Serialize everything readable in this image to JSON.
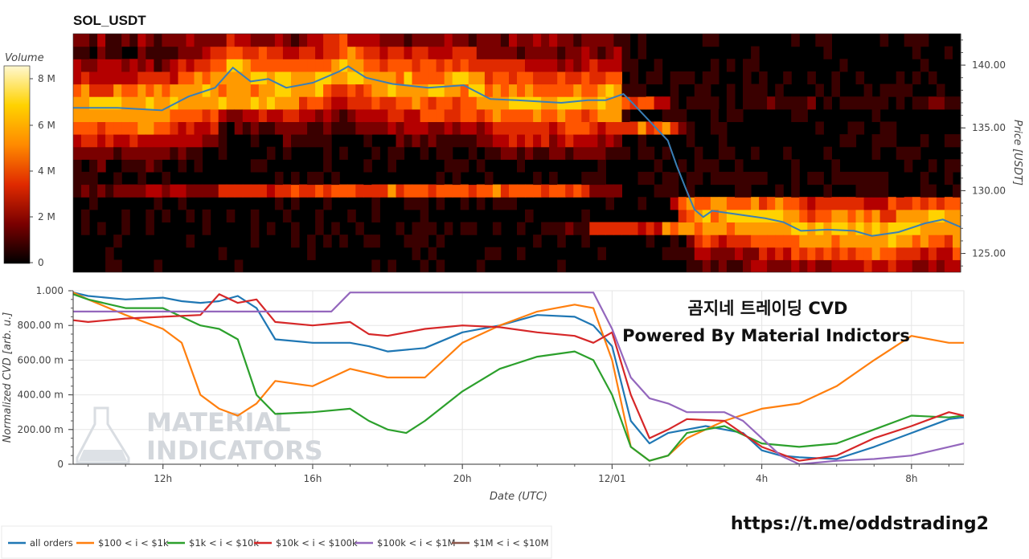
{
  "header": {
    "title": "SOL_USDT"
  },
  "heatmap": {
    "colorbar_title": "Volume",
    "colorbar_ticks": [
      "8 M",
      "6 M",
      "4 M",
      "2 M",
      "0"
    ],
    "price_axis_title": "Price [USDT]",
    "price_ticks": [
      "140.00",
      "135.00",
      "130.00",
      "125.00"
    ],
    "colors": [
      "#000000",
      "#3a0000",
      "#7a0000",
      "#b40000",
      "#e02a00",
      "#ff5500",
      "#ff9a00",
      "#ffd200",
      "#fff8a0"
    ]
  },
  "cvd": {
    "y_axis_title": "Normalized CVD [arb. u.]",
    "y_ticks": [
      "1.000",
      "800.00 m",
      "600.00 m",
      "400.00 m",
      "200.00 m",
      "0"
    ],
    "x_axis_title": "Date (UTC)",
    "x_ticks": [
      "12h",
      "16h",
      "20h",
      "12/01",
      "4h",
      "8h"
    ]
  },
  "overlay": {
    "line1": "곰지네 트레이딩 CVD",
    "line2": "Powered By Material Indictors",
    "watermark_line1": "MATERIAL",
    "watermark_line2": "INDICATORS",
    "url": "https://t.me/oddstrading2"
  },
  "legend": {
    "items": [
      {
        "label": "all orders",
        "color": "#1f77b4"
      },
      {
        "label": "$100 < i < $1k",
        "color": "#ff7f0e"
      },
      {
        "label": "$1k < i < $10k",
        "color": "#2ca02c"
      },
      {
        "label": "$10k < i < $100k",
        "color": "#d62728"
      },
      {
        "label": "$100k < i < $1M",
        "color": "#9467bd"
      },
      {
        "label": "$1M < i < $10M",
        "color": "#8c564b"
      }
    ]
  },
  "chart_data": [
    {
      "type": "heatmap",
      "title": "SOL_USDT",
      "ylabel": "Price [USDT]",
      "ylim": [
        123.5,
        142.5
      ],
      "colorbar": {
        "label": "Volume",
        "range": [
          0,
          9000000
        ]
      },
      "price_series": {
        "name": "price",
        "color": "#3a7fb6",
        "points": [
          [
            0,
            136.6
          ],
          [
            0.05,
            136.6
          ],
          [
            0.1,
            136.4
          ],
          [
            0.13,
            137.5
          ],
          [
            0.16,
            138.2
          ],
          [
            0.18,
            139.8
          ],
          [
            0.2,
            138.7
          ],
          [
            0.22,
            138.9
          ],
          [
            0.24,
            138.2
          ],
          [
            0.27,
            138.6
          ],
          [
            0.3,
            139.5
          ],
          [
            0.31,
            139.9
          ],
          [
            0.33,
            139
          ],
          [
            0.36,
            138.5
          ],
          [
            0.4,
            138.2
          ],
          [
            0.44,
            138.4
          ],
          [
            0.47,
            137.3
          ],
          [
            0.5,
            137.2
          ],
          [
            0.55,
            137
          ],
          [
            0.58,
            137.2
          ],
          [
            0.6,
            137.2
          ],
          [
            0.62,
            137.7
          ],
          [
            0.63,
            137
          ],
          [
            0.65,
            135.5
          ],
          [
            0.67,
            134
          ],
          [
            0.68,
            132
          ],
          [
            0.69,
            130.2
          ],
          [
            0.7,
            128.5
          ],
          [
            0.71,
            127.9
          ],
          [
            0.72,
            128.4
          ],
          [
            0.75,
            128.1
          ],
          [
            0.78,
            127.8
          ],
          [
            0.8,
            127.5
          ],
          [
            0.82,
            126.8
          ],
          [
            0.85,
            126.9
          ],
          [
            0.88,
            126.8
          ],
          [
            0.9,
            126.4
          ],
          [
            0.93,
            126.7
          ],
          [
            0.96,
            127.4
          ],
          [
            0.98,
            127.7
          ],
          [
            1,
            127.1
          ]
        ]
      },
      "bands": [
        {
          "price": 136.9,
          "values": [
            0.8,
            0.8,
            0.8,
            0.4,
            0.15,
            0.1,
            0.1,
            0.1,
            0.1,
            0.1,
            0.1,
            0.1
          ]
        },
        {
          "price": 137.9,
          "values": [
            0.6,
            0.7,
            0.75,
            0.6,
            0.55,
            0.5,
            0.5,
            0.1,
            0.1,
            0.1,
            0.1,
            0.1
          ]
        },
        {
          "price": 139.0,
          "values": [
            0.2,
            0.5,
            0.8,
            0.7,
            0.55,
            0.5,
            0.4,
            0.1,
            0.1,
            0.1,
            0.1,
            0.1
          ]
        },
        {
          "price": 129.9,
          "values": [
            0.2,
            0.3,
            0.5,
            0.6,
            0.6,
            0.6,
            0.55,
            0.3,
            0.55,
            0.5,
            0.5,
            0.5
          ]
        },
        {
          "price": 127.0,
          "values": [
            0.0,
            0.0,
            0.0,
            0.05,
            0.05,
            0.05,
            0.1,
            0.5,
            0.7,
            0.8,
            0.8,
            0.75
          ]
        }
      ]
    },
    {
      "type": "line",
      "title": "",
      "xlabel": "Date (UTC)",
      "ylabel": "Normalized CVD [arb. u.]",
      "x_range_hours": [
        9.6,
        33.4
      ],
      "ylim": [
        0,
        1
      ],
      "x_ticks_hours": [
        12,
        16,
        20,
        24,
        28,
        32
      ],
      "series": [
        {
          "name": "all orders",
          "color": "#1f77b4",
          "points": [
            [
              9.6,
              0.99
            ],
            [
              10,
              0.97
            ],
            [
              11,
              0.95
            ],
            [
              12,
              0.96
            ],
            [
              12.5,
              0.94
            ],
            [
              13,
              0.93
            ],
            [
              13.5,
              0.94
            ],
            [
              14,
              0.97
            ],
            [
              14.5,
              0.9
            ],
            [
              15,
              0.72
            ],
            [
              16,
              0.7
            ],
            [
              17,
              0.7
            ],
            [
              17.5,
              0.68
            ],
            [
              18,
              0.65
            ],
            [
              19,
              0.67
            ],
            [
              20,
              0.76
            ],
            [
              21,
              0.8
            ],
            [
              22,
              0.86
            ],
            [
              23,
              0.85
            ],
            [
              23.5,
              0.8
            ],
            [
              24,
              0.68
            ],
            [
              24.5,
              0.25
            ],
            [
              25,
              0.12
            ],
            [
              25.5,
              0.18
            ],
            [
              26,
              0.2
            ],
            [
              26.5,
              0.22
            ],
            [
              27,
              0.2
            ],
            [
              27.5,
              0.18
            ],
            [
              28,
              0.08
            ],
            [
              28.5,
              0.05
            ],
            [
              29,
              0.04
            ],
            [
              30,
              0.03
            ],
            [
              31,
              0.1
            ],
            [
              32,
              0.18
            ],
            [
              33,
              0.26
            ],
            [
              33.4,
              0.27
            ]
          ]
        },
        {
          "name": "$100 < i < $1k",
          "color": "#ff7f0e",
          "points": [
            [
              9.6,
              0.99
            ],
            [
              10,
              0.95
            ],
            [
              11,
              0.86
            ],
            [
              12,
              0.78
            ],
            [
              12.5,
              0.7
            ],
            [
              13,
              0.4
            ],
            [
              13.5,
              0.32
            ],
            [
              14,
              0.28
            ],
            [
              14.5,
              0.35
            ],
            [
              15,
              0.48
            ],
            [
              16,
              0.45
            ],
            [
              17,
              0.55
            ],
            [
              18,
              0.5
            ],
            [
              19,
              0.5
            ],
            [
              20,
              0.7
            ],
            [
              21,
              0.8
            ],
            [
              22,
              0.88
            ],
            [
              23,
              0.92
            ],
            [
              23.5,
              0.9
            ],
            [
              24,
              0.6
            ],
            [
              24.5,
              0.1
            ],
            [
              25,
              0.02
            ],
            [
              25.5,
              0.05
            ],
            [
              26,
              0.15
            ],
            [
              26.5,
              0.2
            ],
            [
              27,
              0.25
            ],
            [
              28,
              0.32
            ],
            [
              29,
              0.35
            ],
            [
              30,
              0.45
            ],
            [
              31,
              0.6
            ],
            [
              32,
              0.74
            ],
            [
              33,
              0.7
            ],
            [
              33.4,
              0.7
            ]
          ]
        },
        {
          "name": "$1k < i < $10k",
          "color": "#2ca02c",
          "points": [
            [
              9.6,
              0.98
            ],
            [
              10,
              0.95
            ],
            [
              11,
              0.9
            ],
            [
              12,
              0.9
            ],
            [
              12.5,
              0.85
            ],
            [
              13,
              0.8
            ],
            [
              13.5,
              0.78
            ],
            [
              14,
              0.72
            ],
            [
              14.5,
              0.4
            ],
            [
              15,
              0.29
            ],
            [
              16,
              0.3
            ],
            [
              17,
              0.32
            ],
            [
              17.5,
              0.25
            ],
            [
              18,
              0.2
            ],
            [
              18.5,
              0.18
            ],
            [
              19,
              0.25
            ],
            [
              20,
              0.42
            ],
            [
              21,
              0.55
            ],
            [
              22,
              0.62
            ],
            [
              23,
              0.65
            ],
            [
              23.5,
              0.6
            ],
            [
              24,
              0.4
            ],
            [
              24.5,
              0.1
            ],
            [
              25,
              0.02
            ],
            [
              25.5,
              0.05
            ],
            [
              26,
              0.18
            ],
            [
              27,
              0.22
            ],
            [
              28,
              0.12
            ],
            [
              29,
              0.1
            ],
            [
              30,
              0.12
            ],
            [
              31,
              0.2
            ],
            [
              32,
              0.28
            ],
            [
              33,
              0.27
            ],
            [
              33.4,
              0.28
            ]
          ]
        },
        {
          "name": "$10k < i < $100k",
          "color": "#d62728",
          "points": [
            [
              9.6,
              0.83
            ],
            [
              10,
              0.82
            ],
            [
              11,
              0.84
            ],
            [
              12,
              0.85
            ],
            [
              13,
              0.86
            ],
            [
              13.5,
              0.98
            ],
            [
              14,
              0.93
            ],
            [
              14.5,
              0.95
            ],
            [
              15,
              0.82
            ],
            [
              16,
              0.8
            ],
            [
              17,
              0.82
            ],
            [
              17.5,
              0.75
            ],
            [
              18,
              0.74
            ],
            [
              19,
              0.78
            ],
            [
              20,
              0.8
            ],
            [
              21,
              0.79
            ],
            [
              22,
              0.76
            ],
            [
              23,
              0.74
            ],
            [
              23.5,
              0.7
            ],
            [
              24,
              0.76
            ],
            [
              24.5,
              0.4
            ],
            [
              25,
              0.15
            ],
            [
              25.5,
              0.2
            ],
            [
              26,
              0.26
            ],
            [
              27,
              0.25
            ],
            [
              28,
              0.1
            ],
            [
              29,
              0.02
            ],
            [
              30,
              0.05
            ],
            [
              31,
              0.15
            ],
            [
              32,
              0.22
            ],
            [
              33,
              0.3
            ],
            [
              33.4,
              0.28
            ]
          ]
        },
        {
          "name": "$100k < i < $1M",
          "color": "#9467bd",
          "points": [
            [
              9.6,
              0.88
            ],
            [
              12,
              0.88
            ],
            [
              13,
              0.88
            ],
            [
              14.5,
              0.88
            ],
            [
              15,
              0.88
            ],
            [
              16.5,
              0.88
            ],
            [
              17,
              0.99
            ],
            [
              20,
              0.99
            ],
            [
              23.5,
              0.99
            ],
            [
              24,
              0.78
            ],
            [
              24.5,
              0.5
            ],
            [
              25,
              0.38
            ],
            [
              25.5,
              0.35
            ],
            [
              26,
              0.3
            ],
            [
              27,
              0.3
            ],
            [
              27.5,
              0.25
            ],
            [
              28,
              0.15
            ],
            [
              28.5,
              0.05
            ],
            [
              29,
              0.0
            ],
            [
              30,
              0.02
            ],
            [
              31,
              0.03
            ],
            [
              32,
              0.05
            ],
            [
              33,
              0.1
            ],
            [
              33.4,
              0.12
            ]
          ]
        },
        {
          "name": "$1M < i < $10M",
          "color": "#8c564b",
          "points": []
        }
      ]
    }
  ]
}
